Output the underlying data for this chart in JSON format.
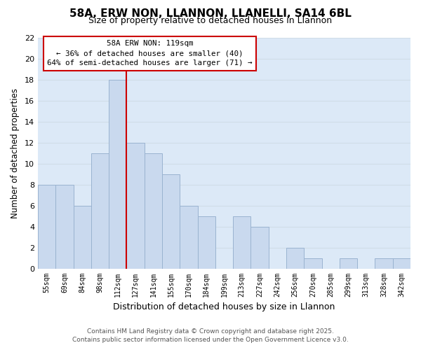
{
  "title": "58A, ERW NON, LLANNON, LLANELLI, SA14 6BL",
  "subtitle": "Size of property relative to detached houses in Llannon",
  "xlabel": "Distribution of detached houses by size in Llannon",
  "ylabel": "Number of detached properties",
  "bar_labels": [
    "55sqm",
    "69sqm",
    "84sqm",
    "98sqm",
    "112sqm",
    "127sqm",
    "141sqm",
    "155sqm",
    "170sqm",
    "184sqm",
    "199sqm",
    "213sqm",
    "227sqm",
    "242sqm",
    "256sqm",
    "270sqm",
    "285sqm",
    "299sqm",
    "313sqm",
    "328sqm",
    "342sqm"
  ],
  "bar_values": [
    8,
    8,
    6,
    11,
    18,
    12,
    11,
    9,
    6,
    5,
    0,
    5,
    4,
    0,
    2,
    1,
    0,
    1,
    0,
    1,
    1
  ],
  "bar_color": "#c9d9ee",
  "bar_edge_color": "#9ab3d0",
  "vline_x": 4.5,
  "vline_color": "#cc0000",
  "ylim": [
    0,
    22
  ],
  "yticks": [
    0,
    2,
    4,
    6,
    8,
    10,
    12,
    14,
    16,
    18,
    20,
    22
  ],
  "annotation_title": "58A ERW NON: 119sqm",
  "annotation_line1": "← 36% of detached houses are smaller (40)",
  "annotation_line2": "64% of semi-detached houses are larger (71) →",
  "grid_color": "#d0dce8",
  "bg_color": "#dce9f7",
  "fig_bg_color": "#ffffff",
  "footer_line1": "Contains HM Land Registry data © Crown copyright and database right 2025.",
  "footer_line2": "Contains public sector information licensed under the Open Government Licence v3.0."
}
